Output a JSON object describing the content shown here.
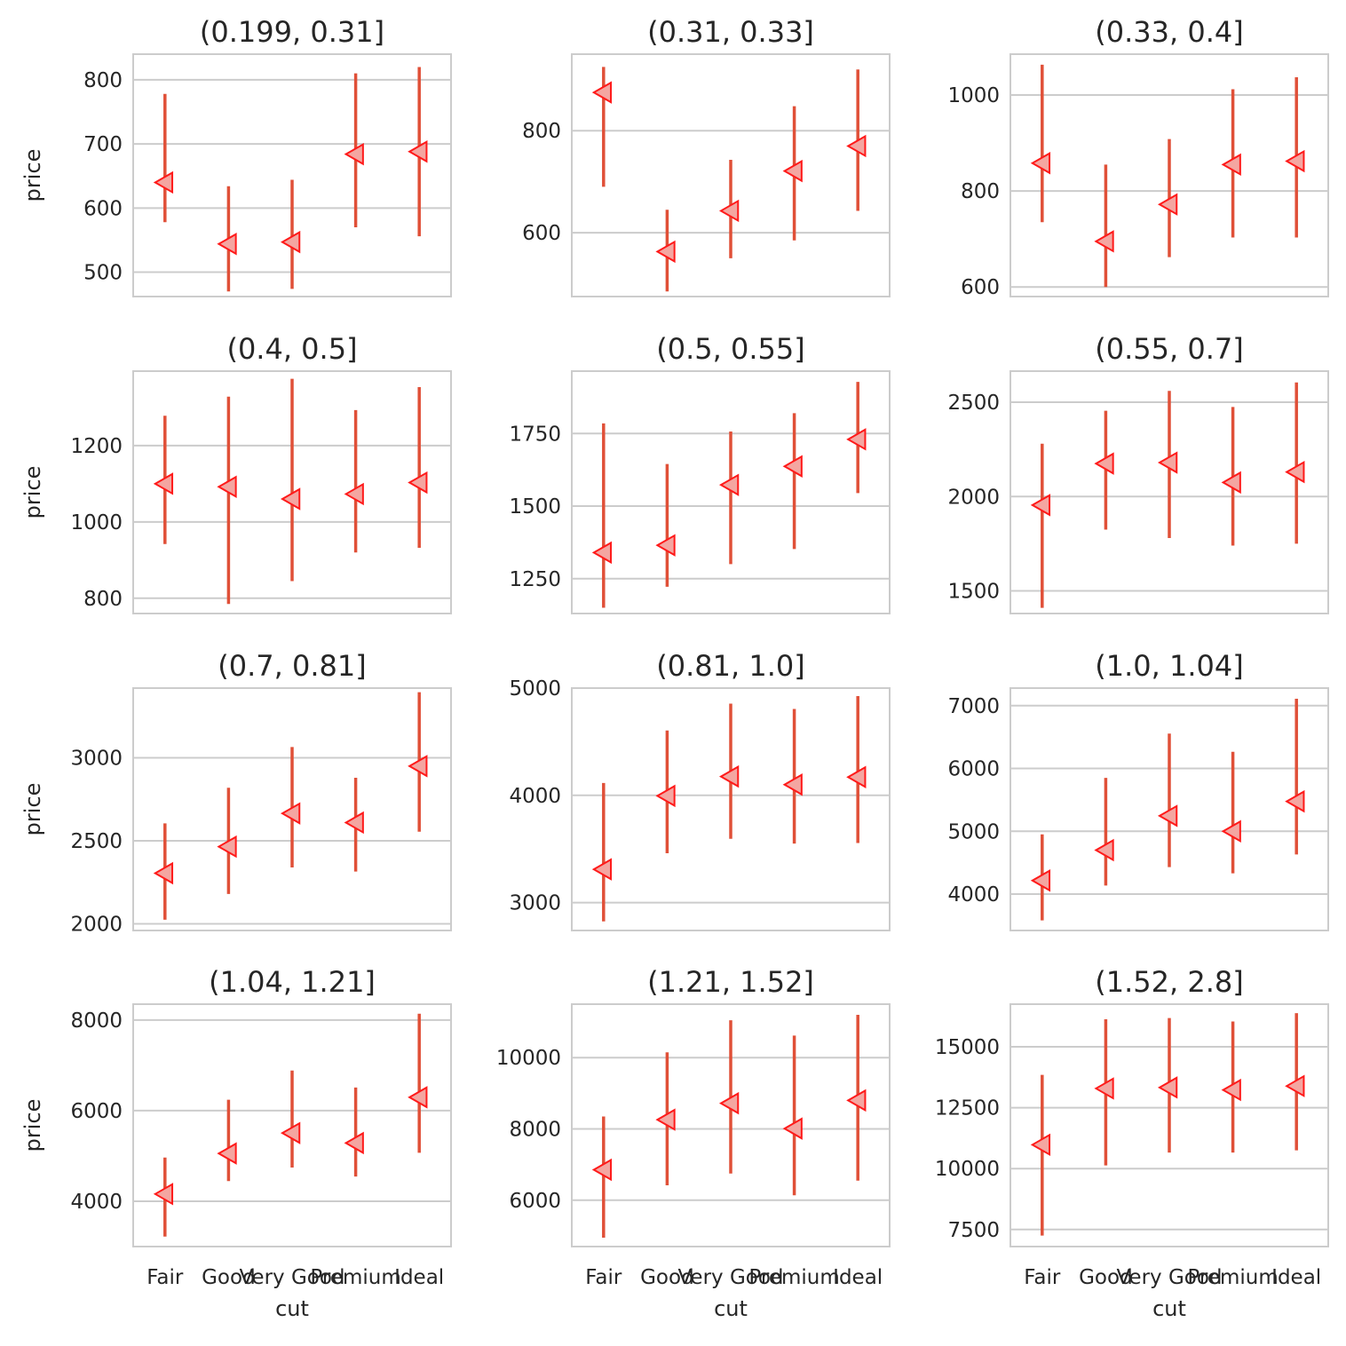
{
  "chart_data": {
    "type": "pointplot",
    "grid": true,
    "xlabel": "cut",
    "ylabel": "price",
    "categories": [
      "Fair",
      "Good",
      "Very Good",
      "Premium",
      "Ideal"
    ],
    "panels": [
      {
        "title": "(0.199, 0.31]",
        "ylim": [
          462,
          840
        ],
        "yticks": [
          500,
          600,
          700,
          800
        ],
        "values": [
          640,
          544,
          547,
          684,
          688
        ],
        "ci_low": [
          578,
          470,
          474,
          570,
          556
        ],
        "ci_high": [
          778,
          634,
          644,
          810,
          820
        ]
      },
      {
        "title": "(0.31, 0.33]",
        "ylim": [
          475,
          950
        ],
        "yticks": [
          600,
          800
        ],
        "values": [
          875,
          563,
          643,
          721,
          770
        ],
        "ci_low": [
          690,
          485,
          550,
          585,
          643
        ],
        "ci_high": [
          925,
          645,
          743,
          848,
          920
        ]
      },
      {
        "title": "(0.33, 0.4]",
        "ylim": [
          580,
          1085
        ],
        "yticks": [
          600,
          800,
          1000
        ],
        "values": [
          858,
          695,
          772,
          855,
          862
        ],
        "ci_low": [
          735,
          600,
          662,
          703,
          703
        ],
        "ci_high": [
          1063,
          855,
          908,
          1012,
          1037
        ]
      },
      {
        "title": "(0.4, 0.5]",
        "ylim": [
          760,
          1395
        ],
        "yticks": [
          800,
          1000,
          1200
        ],
        "values": [
          1100,
          1092,
          1060,
          1073,
          1103
        ],
        "ci_low": [
          942,
          785,
          845,
          920,
          932
        ],
        "ci_high": [
          1278,
          1328,
          1375,
          1293,
          1353
        ]
      },
      {
        "title": "(0.5, 0.55]",
        "ylim": [
          1130,
          1965
        ],
        "yticks": [
          1250,
          1500,
          1750
        ],
        "values": [
          1340,
          1365,
          1573,
          1637,
          1730
        ],
        "ci_low": [
          1150,
          1222,
          1300,
          1352,
          1545
        ],
        "ci_high": [
          1785,
          1645,
          1757,
          1820,
          1928
        ]
      },
      {
        "title": "(0.55, 0.7]",
        "ylim": [
          1380,
          2665
        ],
        "yticks": [
          1500,
          2000,
          2500
        ],
        "values": [
          1955,
          2175,
          2180,
          2075,
          2130
        ],
        "ci_low": [
          1410,
          1825,
          1780,
          1740,
          1750
        ],
        "ci_high": [
          2280,
          2455,
          2560,
          2475,
          2605
        ]
      },
      {
        "title": "(0.7, 0.81]",
        "ylim": [
          1960,
          3420
        ],
        "yticks": [
          2000,
          2500,
          3000
        ],
        "values": [
          2305,
          2465,
          2665,
          2610,
          2950
        ],
        "ci_low": [
          2025,
          2180,
          2340,
          2315,
          2555
        ],
        "ci_high": [
          2605,
          2820,
          3065,
          2880,
          3395
        ]
      },
      {
        "title": "(0.81, 1.0]",
        "ylim": [
          2740,
          5000
        ],
        "yticks": [
          3000,
          4000,
          5000
        ],
        "values": [
          3310,
          3995,
          4175,
          4100,
          4170
        ],
        "ci_low": [
          2825,
          3460,
          3595,
          3550,
          3555
        ],
        "ci_high": [
          4115,
          4605,
          4855,
          4805,
          4925
        ]
      },
      {
        "title": "(1.0, 1.04]",
        "ylim": [
          3420,
          7280
        ],
        "yticks": [
          4000,
          5000,
          6000,
          7000
        ],
        "values": [
          4215,
          4700,
          5245,
          5000,
          5475
        ],
        "ci_low": [
          3580,
          4135,
          4430,
          4330,
          4630
        ],
        "ci_high": [
          4950,
          5850,
          6555,
          6265,
          7110
        ]
      },
      {
        "title": "(1.04, 1.21]",
        "ylim": [
          3000,
          8350
        ],
        "yticks": [
          4000,
          6000,
          8000
        ],
        "values": [
          4160,
          5055,
          5505,
          5285,
          6295
        ],
        "ci_low": [
          3220,
          4445,
          4745,
          4545,
          5070
        ],
        "ci_high": [
          4965,
          6240,
          6885,
          6510,
          8140
        ]
      },
      {
        "title": "(1.21, 1.52]",
        "ylim": [
          4700,
          11500
        ],
        "yticks": [
          6000,
          8000,
          10000
        ],
        "values": [
          6855,
          8260,
          8720,
          8010,
          8800
        ],
        "ci_low": [
          4950,
          6420,
          6750,
          6140,
          6550
        ],
        "ci_high": [
          8350,
          10150,
          11050,
          10620,
          11200
        ]
      },
      {
        "title": "(1.52, 2.8]",
        "ylim": [
          6800,
          16750
        ],
        "yticks": [
          7500,
          10000,
          12500,
          15000
        ],
        "values": [
          10980,
          13290,
          13330,
          13230,
          13390
        ],
        "ci_low": [
          7250,
          10130,
          10660,
          10660,
          10750
        ],
        "ci_high": [
          13850,
          16130,
          16180,
          16040,
          16380
        ]
      }
    ]
  }
}
